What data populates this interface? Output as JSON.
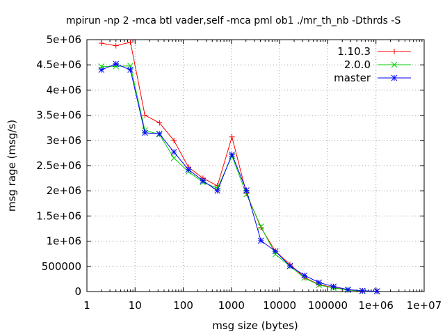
{
  "chart_data": {
    "type": "line",
    "title": "mpirun -np 2 -mca btl vader,self -mca pml ob1 ./mr_th_nb -Dthrds -S",
    "xlabel": "msg size (bytes)",
    "ylabel": "msg rage (msg/s)",
    "x_scale": "log",
    "xlim": [
      1,
      10000000
    ],
    "ylim": [
      0,
      5000000
    ],
    "grid": true,
    "legend_position": "top-right",
    "x_tick_values": [
      1,
      10,
      100,
      1000,
      10000,
      100000,
      1000000,
      10000000
    ],
    "x_tick_labels": [
      "1",
      "10",
      "100",
      "1000",
      "10000",
      "100000",
      "1e+06",
      "1e+07"
    ],
    "y_tick_values": [
      0,
      500000,
      1000000,
      1500000,
      2000000,
      2500000,
      3000000,
      3500000,
      4000000,
      4500000,
      5000000
    ],
    "y_tick_labels": [
      "0",
      "500000",
      "1e+06",
      "1.5e+06",
      "2e+06",
      "2.5e+06",
      "3e+06",
      "3.5e+06",
      "4e+06",
      "4.5e+06",
      "5e+06"
    ],
    "x": [
      2,
      4,
      8,
      16,
      32,
      64,
      128,
      256,
      512,
      1024,
      2048,
      4096,
      8192,
      16384,
      32768,
      65536,
      131072,
      262144,
      524288,
      1048576
    ],
    "series": [
      {
        "name": "1.10.3",
        "color": "#ff0000",
        "marker": "plus",
        "values": [
          4930000,
          4880000,
          4950000,
          3500000,
          3350000,
          3000000,
          2470000,
          2250000,
          2100000,
          3070000,
          1950000,
          1270000,
          800000,
          540000,
          280000,
          140000,
          80000,
          30000,
          10000,
          5000
        ]
      },
      {
        "name": "2.0.0",
        "color": "#00d000",
        "marker": "cross",
        "values": [
          4470000,
          4470000,
          4480000,
          3200000,
          3120000,
          2650000,
          2380000,
          2170000,
          2050000,
          2690000,
          1930000,
          1290000,
          740000,
          500000,
          270000,
          130000,
          70000,
          30000,
          10000,
          5000
        ]
      },
      {
        "name": "master",
        "color": "#0000ff",
        "marker": "star",
        "values": [
          4400000,
          4520000,
          4400000,
          3150000,
          3130000,
          2770000,
          2420000,
          2200000,
          2000000,
          2720000,
          2010000,
          1010000,
          800000,
          510000,
          320000,
          180000,
          100000,
          40000,
          15000,
          5000
        ]
      }
    ]
  }
}
